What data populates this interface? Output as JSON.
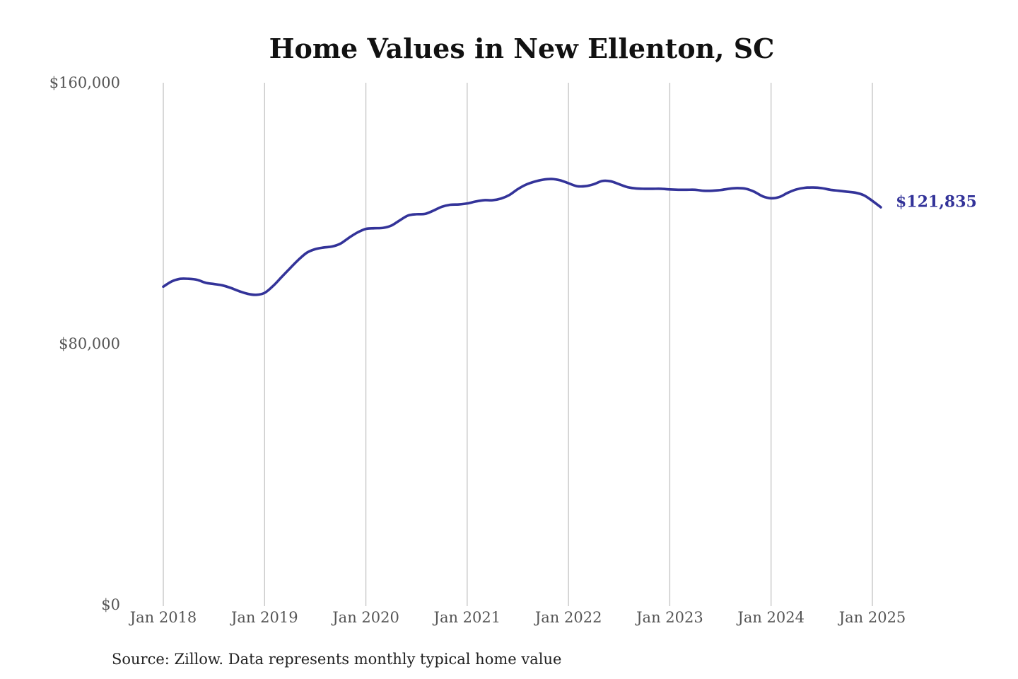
{
  "chart_data": {
    "type": "line",
    "title": "Home Values in New Ellenton, SC",
    "xlabel": "",
    "ylabel": "",
    "x_ticks": [
      "Jan 2018",
      "Jan 2019",
      "Jan 2020",
      "Jan 2021",
      "Jan 2022",
      "Jan 2023",
      "Jan 2024",
      "Jan 2025"
    ],
    "y_ticks": [
      "$0",
      "$80,000",
      "$160,000"
    ],
    "ylim": [
      0,
      160000
    ],
    "xlim": [
      "2018-01",
      "2025-02"
    ],
    "grid": "vertical",
    "legend": "none",
    "series": [
      {
        "color": "#333399",
        "end_label": "$121,835",
        "x": [
          "2018-01",
          "2018-02",
          "2018-03",
          "2018-04",
          "2018-05",
          "2018-06",
          "2018-07",
          "2018-08",
          "2018-09",
          "2018-10",
          "2018-11",
          "2018-12",
          "2019-01",
          "2019-02",
          "2019-03",
          "2019-04",
          "2019-05",
          "2019-06",
          "2019-07",
          "2019-08",
          "2019-09",
          "2019-10",
          "2019-11",
          "2019-12",
          "2020-01",
          "2020-02",
          "2020-03",
          "2020-04",
          "2020-05",
          "2020-06",
          "2020-07",
          "2020-08",
          "2020-09",
          "2020-10",
          "2020-11",
          "2020-12",
          "2021-01",
          "2021-02",
          "2021-03",
          "2021-04",
          "2021-05",
          "2021-06",
          "2021-07",
          "2021-08",
          "2021-09",
          "2021-10",
          "2021-11",
          "2021-12",
          "2022-01",
          "2022-02",
          "2022-03",
          "2022-04",
          "2022-05",
          "2022-06",
          "2022-07",
          "2022-08",
          "2022-09",
          "2022-10",
          "2022-11",
          "2022-12",
          "2023-01",
          "2023-02",
          "2023-03",
          "2023-04",
          "2023-05",
          "2023-06",
          "2023-07",
          "2023-08",
          "2023-09",
          "2023-10",
          "2023-11",
          "2023-12",
          "2024-01",
          "2024-02",
          "2024-03",
          "2024-04",
          "2024-05",
          "2024-06",
          "2024-07",
          "2024-08",
          "2024-09",
          "2024-10",
          "2024-11",
          "2024-12",
          "2025-01",
          "2025-02"
        ],
        "values": [
          97500,
          99100,
          99900,
          99900,
          99600,
          98700,
          98300,
          97900,
          97100,
          96100,
          95300,
          95000,
          95600,
          97700,
          100400,
          103100,
          105700,
          107900,
          109000,
          109500,
          109800,
          110700,
          112500,
          114100,
          115200,
          115400,
          115500,
          116200,
          117800,
          119300,
          119700,
          119800,
          120800,
          122000,
          122600,
          122700,
          123000,
          123600,
          124000,
          124000,
          124500,
          125600,
          127400,
          128800,
          129700,
          130300,
          130500,
          130100,
          129200,
          128300,
          128300,
          128900,
          129900,
          129800,
          128900,
          128000,
          127600,
          127500,
          127500,
          127500,
          127300,
          127200,
          127200,
          127200,
          126900,
          126900,
          127100,
          127500,
          127700,
          127500,
          126600,
          125200,
          124600,
          125000,
          126300,
          127300,
          127800,
          127900,
          127700,
          127200,
          126900,
          126600,
          126300,
          125500,
          123800,
          121835
        ]
      }
    ],
    "source": "Source: Zillow. Data represents monthly typical home value"
  }
}
